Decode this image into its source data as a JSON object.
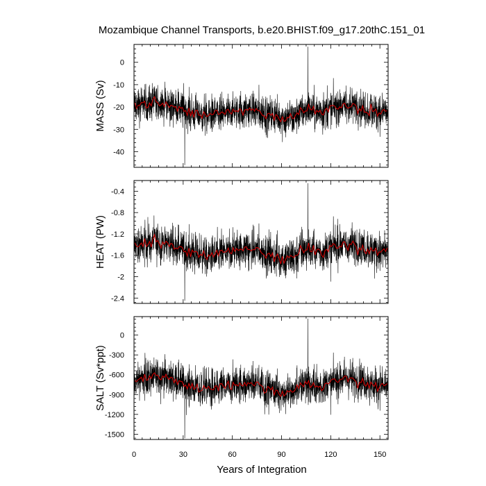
{
  "title": "Mozambique Channel Transports, b.e20.BHIST.f09_g17.20thC.151_01",
  "chart_data": {
    "type": "line",
    "title": "Mozambique Channel Transports, b.e20.BHIST.f09_g17.20thC.151_01",
    "xlabel": "Years of Integration",
    "xlim": [
      0,
      155
    ],
    "xticks": [
      0,
      30,
      60,
      90,
      120,
      150
    ],
    "panels": [
      {
        "ylabel": "MASS (Sv)",
        "ylim": [
          -47,
          8
        ],
        "yticks": [
          0,
          -10,
          -20,
          -30,
          -40
        ],
        "mean": -22,
        "amplitude": 6,
        "series": [
          {
            "color": "#000000",
            "kind": "monthly"
          },
          {
            "color": "#cc0000",
            "kind": "annual mean"
          }
        ],
        "max_value": 7,
        "min_value": -46
      },
      {
        "ylabel": "HEAT (PW)",
        "ylim": [
          -2.5,
          -0.2
        ],
        "yticks": [
          -0.4,
          -0.8,
          -1.2,
          -1.6,
          -2.0,
          -2.4
        ],
        "mean": -1.52,
        "amplitude": 0.27,
        "series": [
          {
            "color": "#000000",
            "kind": "monthly"
          },
          {
            "color": "#cc0000",
            "kind": "annual mean"
          }
        ],
        "max_value": -0.25,
        "min_value": -2.45
      },
      {
        "ylabel": "SALT (Sv*ppt)",
        "ylim": [
          -1580,
          280
        ],
        "yticks": [
          0,
          -300,
          -600,
          -900,
          -1200,
          -1500
        ],
        "mean": -760,
        "amplitude": 210,
        "series": [
          {
            "color": "#000000",
            "kind": "monthly"
          },
          {
            "color": "#cc0000",
            "kind": "annual mean"
          }
        ],
        "max_value": 250,
        "min_value": -1560
      }
    ]
  }
}
